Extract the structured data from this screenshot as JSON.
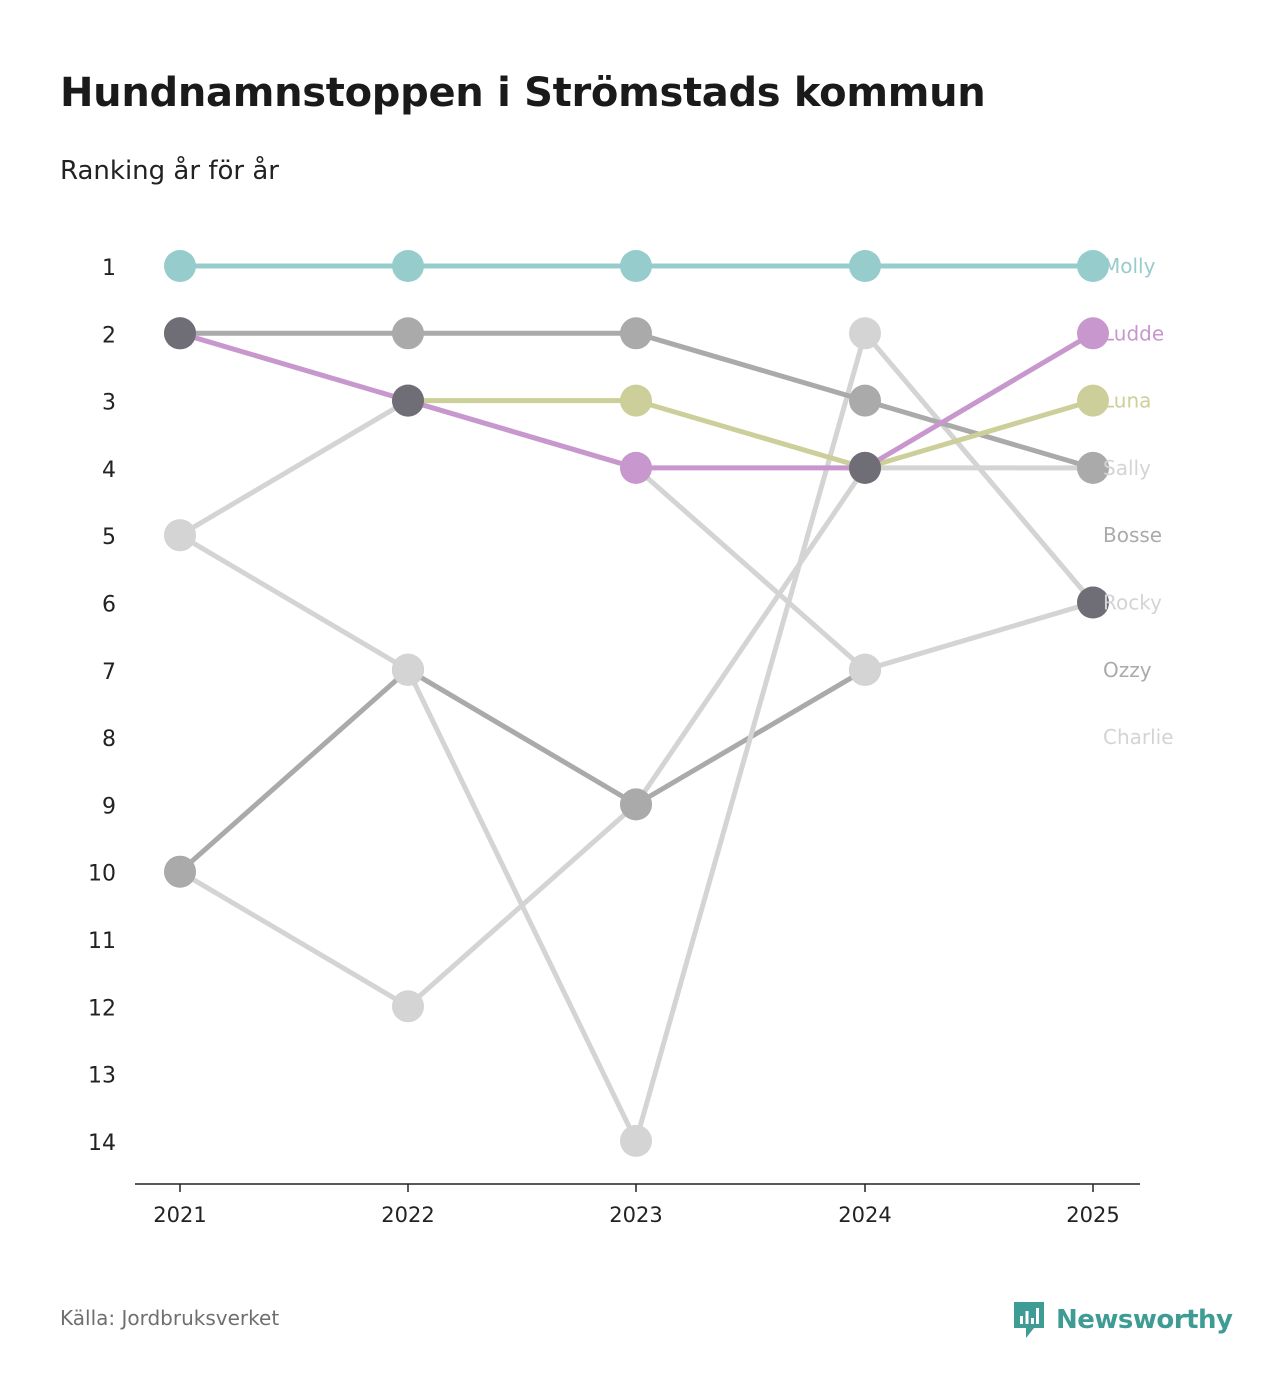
{
  "title": "Hundnamnstoppen i Strömstads kommun",
  "subtitle": "Ranking år för år",
  "source": "Källa: Jordbruksverket",
  "brand": {
    "name": "Newsworthy",
    "icon": "newsworthy-logo-icon",
    "color": "#3f9c95"
  },
  "chart_data": {
    "type": "line",
    "subtype": "bump",
    "x": [
      "2021",
      "2022",
      "2023",
      "2024",
      "2025"
    ],
    "y_ticks": [
      1,
      2,
      3,
      4,
      5,
      6,
      7,
      8,
      9,
      10,
      11,
      12,
      13,
      14
    ],
    "y_axis": "rank",
    "ylim": [
      1,
      14
    ],
    "legend_position": "right",
    "series": [
      {
        "name": "Charlie",
        "color": "#d4d4d4",
        "ranks": [
          10,
          12,
          9,
          4,
          4
        ]
      },
      {
        "name": "Ozzy",
        "color": "#aaaaaa",
        "ranks": [
          10,
          7,
          9,
          7,
          null
        ]
      },
      {
        "name": "Rocky",
        "color": "#d4d4d4",
        "ranks": [
          5,
          7,
          14,
          2,
          6
        ]
      },
      {
        "name": "Bosse",
        "color": "#aaaaaa",
        "ranks": [
          2,
          2,
          2,
          3,
          4
        ]
      },
      {
        "name": "Sally",
        "color": "#d4d4d4",
        "ranks": [
          5,
          3,
          4,
          7,
          6
        ]
      },
      {
        "name": "Luna",
        "color": "#cccf9a",
        "ranks": [
          null,
          3,
          3,
          4,
          3
        ]
      },
      {
        "name": "Ludde",
        "color": "#c797cd",
        "ranks": [
          2,
          3,
          4,
          4,
          2
        ]
      },
      {
        "name": "Molly",
        "color": "#96cccb",
        "ranks": [
          1,
          1,
          1,
          1,
          1
        ]
      }
    ],
    "highlight_series": {
      "name": "Rocky/Ludde dark marker",
      "color": "#6f6e76"
    },
    "labels_order": [
      "Molly",
      "Ludde",
      "Luna",
      "Sally",
      "Bosse",
      "Rocky",
      "Ozzy",
      "Charlie"
    ],
    "label_ranks": {
      "Molly": 1,
      "Ludde": 2,
      "Luna": 3,
      "Sally": 4,
      "Bosse": 5,
      "Rocky": 6,
      "Ozzy": 7,
      "Charlie": 8
    }
  }
}
